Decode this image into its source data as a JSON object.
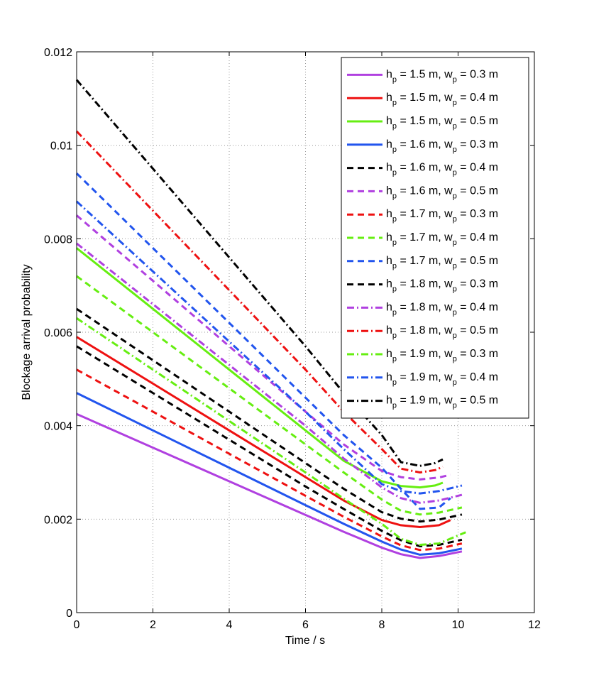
{
  "chart_data": {
    "type": "line",
    "title": "",
    "xlabel": "Time / s",
    "ylabel": "Blockage arrival probability",
    "xlim": [
      0,
      12
    ],
    "ylim": [
      0,
      0.012
    ],
    "xticks": [
      0,
      2,
      4,
      6,
      8,
      10,
      12
    ],
    "xtick_labels": [
      "0",
      "2",
      "4",
      "6",
      "8",
      "10",
      "12"
    ],
    "yticks": [
      0,
      0.002,
      0.004,
      0.006,
      0.008,
      0.01,
      0.012
    ],
    "ytick_labels": [
      "0",
      "0.002",
      "0.004",
      "0.006",
      "0.008",
      "0.01",
      "0.012"
    ],
    "grid": true,
    "legend_position": "top-right",
    "series": [
      {
        "name": "h_p = 1.5 m, w_p = 0.3 m",
        "label_h": "1.5",
        "label_w": "0.3",
        "color": "#b040e0",
        "style": "solid",
        "x": [
          0,
          2,
          4,
          6,
          7,
          8,
          8.5,
          9,
          9.5,
          10.1
        ],
        "y": [
          0.00425,
          0.00353,
          0.00281,
          0.00209,
          0.00173,
          0.00139,
          0.00125,
          0.00117,
          0.00121,
          0.00131
        ]
      },
      {
        "name": "h_p = 1.5 m, w_p = 0.4 m",
        "label_h": "1.5",
        "label_w": "0.4",
        "color": "#ee1111",
        "style": "solid",
        "x": [
          0,
          2,
          4,
          6,
          7,
          8,
          8.5,
          9,
          9.5,
          9.8
        ],
        "y": [
          0.0059,
          0.0049,
          0.0039,
          0.0029,
          0.0024,
          0.00198,
          0.00187,
          0.00183,
          0.00187,
          0.00198
        ]
      },
      {
        "name": "h_p = 1.5 m, w_p = 0.5 m",
        "label_h": "1.5",
        "label_w": "0.5",
        "color": "#66ee11",
        "style": "solid",
        "x": [
          0,
          2,
          4,
          6,
          7,
          8,
          8.5,
          9,
          9.4,
          9.6
        ],
        "y": [
          0.0078,
          0.0065,
          0.0052,
          0.0039,
          0.00325,
          0.00281,
          0.00271,
          0.00268,
          0.00272,
          0.00278
        ]
      },
      {
        "name": "h_p = 1.6 m, w_p = 0.3 m",
        "label_h": "1.6",
        "label_w": "0.3",
        "color": "#2255ee",
        "style": "solid",
        "x": [
          0,
          2,
          4,
          6,
          7,
          8,
          8.5,
          9,
          9.5,
          10.1
        ],
        "y": [
          0.0047,
          0.0039,
          0.0031,
          0.0023,
          0.0019,
          0.00152,
          0.00135,
          0.00124,
          0.00127,
          0.00137
        ]
      },
      {
        "name": "h_p = 1.6 m, w_p = 0.4 m",
        "label_h": "1.6",
        "label_w": "0.4",
        "color": "#000000",
        "style": "dashed",
        "x": [
          0,
          2,
          4,
          6,
          7,
          8,
          8.5,
          9,
          9.5,
          10.1
        ],
        "y": [
          0.0065,
          0.0054,
          0.0043,
          0.0032,
          0.00265,
          0.00215,
          0.00201,
          0.00195,
          0.00199,
          0.0021
        ]
      },
      {
        "name": "h_p = 1.6 m, w_p = 0.5 m",
        "label_h": "1.6",
        "label_w": "0.5",
        "color": "#b040e0",
        "style": "dashed",
        "x": [
          0,
          2,
          4,
          6,
          7,
          8,
          8.5,
          9,
          9.5,
          9.8
        ],
        "y": [
          0.0085,
          0.0071,
          0.0057,
          0.0043,
          0.0036,
          0.00303,
          0.0029,
          0.00285,
          0.00289,
          0.00295
        ]
      },
      {
        "name": "h_p = 1.7 m, w_p = 0.3 m",
        "label_h": "1.7",
        "label_w": "0.3",
        "color": "#ee1111",
        "style": "dashed",
        "x": [
          0,
          2,
          4,
          6,
          7,
          8,
          8.5,
          9,
          9.5,
          10.1
        ],
        "y": [
          0.0052,
          0.0043,
          0.0034,
          0.0025,
          0.00205,
          0.00163,
          0.00144,
          0.00134,
          0.00137,
          0.00148
        ]
      },
      {
        "name": "h_p = 1.7 m, w_p = 0.4 m",
        "label_h": "1.7",
        "label_w": "0.4",
        "color": "#66ee11",
        "style": "dashed",
        "x": [
          0,
          2,
          4,
          6,
          7,
          8,
          8.5,
          9,
          9.5,
          10.1
        ],
        "y": [
          0.0072,
          0.006,
          0.0048,
          0.0036,
          0.003,
          0.00242,
          0.00218,
          0.0021,
          0.00214,
          0.00225
        ]
      },
      {
        "name": "h_p = 1.7 m, w_p = 0.5 m",
        "label_h": "1.7",
        "label_w": "0.5",
        "color": "#2255ee",
        "style": "dashed",
        "x": [
          0,
          2,
          4,
          6,
          7,
          8,
          8.5,
          9,
          9.5,
          9.8
        ],
        "y": [
          0.0094,
          0.0078,
          0.0062,
          0.0046,
          0.0038,
          0.0031,
          0.00265,
          0.00222,
          0.00225,
          0.00245
        ]
      },
      {
        "name": "h_p = 1.8 m, w_p = 0.3 m",
        "label_h": "1.8",
        "label_w": "0.3",
        "color": "#000000",
        "style": "dashed",
        "x": [
          0,
          2,
          4,
          6,
          7,
          8,
          8.5,
          9,
          9.5,
          10.1
        ],
        "y": [
          0.0057,
          0.0047,
          0.0037,
          0.0027,
          0.00222,
          0.00175,
          0.00155,
          0.00142,
          0.00145,
          0.00156
        ]
      },
      {
        "name": "h_p = 1.8 m, w_p = 0.4 m",
        "label_h": "1.8",
        "label_w": "0.4",
        "color": "#b040e0",
        "style": "dashdot",
        "x": [
          0,
          2,
          4,
          6,
          7,
          8,
          8.5,
          9,
          9.5,
          10.1
        ],
        "y": [
          0.0079,
          0.0066,
          0.0053,
          0.004,
          0.0033,
          0.00268,
          0.00245,
          0.00235,
          0.0024,
          0.00252
        ]
      },
      {
        "name": "h_p = 1.8 m, w_p = 0.5 m",
        "label_h": "1.8",
        "label_w": "0.5",
        "color": "#ee1111",
        "style": "dashdot",
        "x": [
          0,
          2,
          4,
          6,
          7,
          8,
          8.5,
          9,
          9.4,
          9.6
        ],
        "y": [
          0.0103,
          0.0086,
          0.0069,
          0.0052,
          0.0043,
          0.0035,
          0.00308,
          0.003,
          0.00305,
          0.00312
        ]
      },
      {
        "name": "h_p = 1.9 m, w_p = 0.3 m",
        "label_h": "1.9",
        "label_w": "0.3",
        "color": "#66ee11",
        "style": "dashdot",
        "x": [
          0,
          2,
          4,
          6,
          7,
          8,
          8.5,
          9,
          9.5,
          10.2
        ],
        "y": [
          0.0063,
          0.0052,
          0.0041,
          0.003,
          0.00244,
          0.0019,
          0.00158,
          0.00145,
          0.00148,
          0.00172
        ]
      },
      {
        "name": "h_p = 1.9 m, w_p = 0.4 m",
        "label_h": "1.9",
        "label_w": "0.4",
        "color": "#2255ee",
        "style": "dashdot",
        "x": [
          0,
          2,
          4,
          6,
          7,
          8,
          8.5,
          9,
          9.5,
          10.1
        ],
        "y": [
          0.0088,
          0.0073,
          0.0058,
          0.0043,
          0.0035,
          0.00275,
          0.0026,
          0.00255,
          0.0026,
          0.00272
        ]
      },
      {
        "name": "h_p = 1.9 m, w_p = 0.5 m",
        "label_h": "1.9",
        "label_w": "0.5",
        "color": "#000000",
        "style": "dashdot",
        "x": [
          0,
          2,
          4,
          6,
          7,
          8,
          8.5,
          9,
          9.4,
          9.6
        ],
        "y": [
          0.0114,
          0.0095,
          0.0076,
          0.0057,
          0.0047,
          0.0038,
          0.00322,
          0.00314,
          0.0032,
          0.00328
        ]
      }
    ]
  },
  "legend": {
    "h_symbol": "h",
    "w_symbol": "w",
    "subscript": "p",
    "eq": " = ",
    "unit_sep": " m, ",
    "unit_end": " m"
  }
}
